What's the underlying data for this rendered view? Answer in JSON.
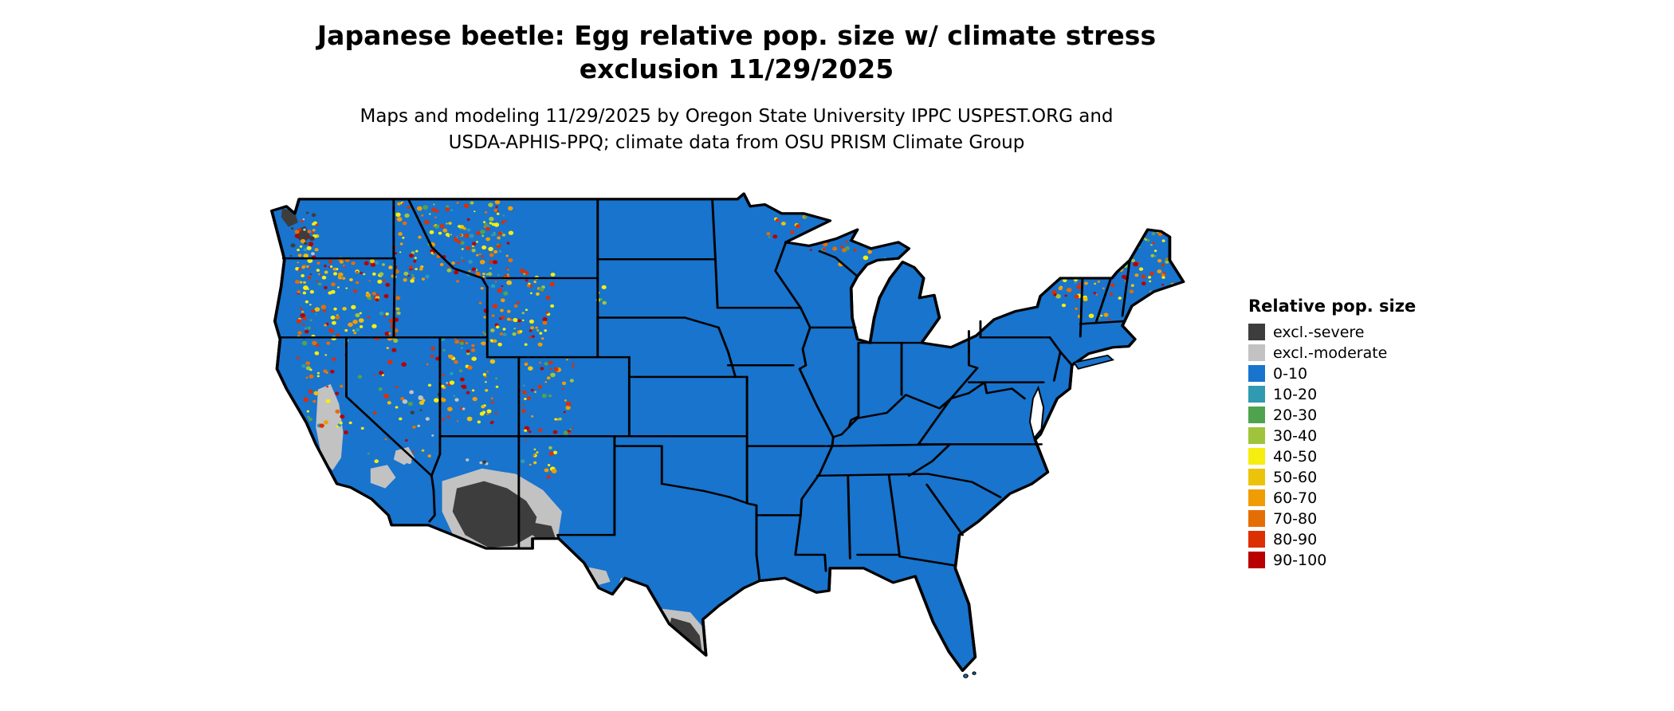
{
  "title": {
    "line1": "Japanese beetle: Egg relative pop. size w/ climate stress",
    "line2": "exclusion 11/29/2025"
  },
  "subtitle": {
    "line1": "Maps and modeling 11/29/2025 by Oregon State University IPPC USPEST.ORG and",
    "line2": "USDA-APHIS-PPQ; climate data from OSU PRISM Climate Group"
  },
  "legend": {
    "title": "Relative pop. size",
    "items": [
      {
        "label": "excl.-severe",
        "color": "#3d3d3d"
      },
      {
        "label": "excl.-moderate",
        "color": "#c2c2c2"
      },
      {
        "label": "0-10",
        "color": "#1874cd"
      },
      {
        "label": "10-20",
        "color": "#2f9ab0"
      },
      {
        "label": "20-30",
        "color": "#4fa34f"
      },
      {
        "label": "30-40",
        "color": "#9fc43c"
      },
      {
        "label": "40-50",
        "color": "#f5ee0f"
      },
      {
        "label": "50-60",
        "color": "#ecc30b"
      },
      {
        "label": "60-70",
        "color": "#f09c05"
      },
      {
        "label": "70-80",
        "color": "#e56e04"
      },
      {
        "label": "80-90",
        "color": "#dc2f02"
      },
      {
        "label": "90-100",
        "color": "#b80000"
      }
    ]
  },
  "map": {
    "region": "Contiguous United States",
    "base_fill": "#1874cd",
    "border_color": "#000000",
    "water_color": "#ffffff"
  }
}
